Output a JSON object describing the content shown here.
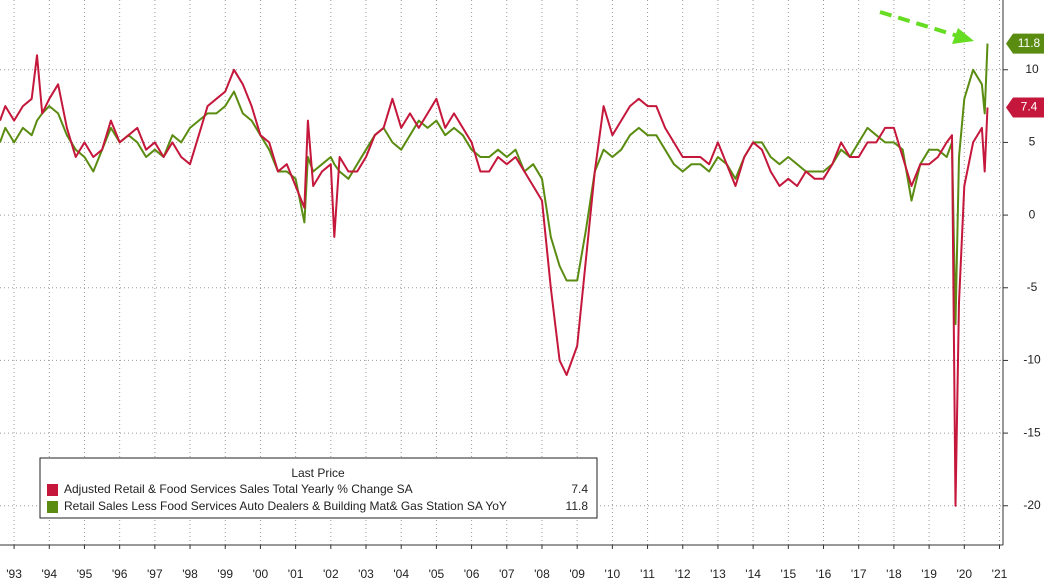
{
  "chart_data": {
    "type": "line",
    "x": [
      1993.1,
      1993.25,
      1993.5,
      1993.75,
      1994,
      1994.15,
      1994.3,
      1994.5,
      1994.75,
      1995,
      1995.25,
      1995.5,
      1995.75,
      1996,
      1996.25,
      1996.5,
      1996.75,
      1997,
      1997.25,
      1997.5,
      1997.75,
      1998,
      1998.25,
      1998.5,
      1998.75,
      1999,
      1999.25,
      1999.5,
      1999.75,
      2000,
      2000.25,
      2000.5,
      2000.75,
      2001,
      2001.25,
      2001.5,
      2001.75,
      2001.85,
      2002,
      2002.25,
      2002.5,
      2002.6,
      2002.75,
      2003,
      2003.25,
      2003.5,
      2003.75,
      2004,
      2004.25,
      2004.5,
      2004.75,
      2005,
      2005.25,
      2005.5,
      2005.75,
      2006,
      2006.25,
      2006.5,
      2006.75,
      2007,
      2007.25,
      2007.5,
      2007.75,
      2008,
      2008.25,
      2008.5,
      2008.75,
      2009,
      2009.2,
      2009.5,
      2009.75,
      2010,
      2010.25,
      2010.5,
      2010.75,
      2011,
      2011.25,
      2011.5,
      2011.75,
      2012,
      2012.25,
      2012.5,
      2012.75,
      2013,
      2013.25,
      2013.5,
      2013.75,
      2014,
      2014.25,
      2014.5,
      2014.75,
      2015,
      2015.25,
      2015.5,
      2015.75,
      2016,
      2016.25,
      2016.5,
      2016.75,
      2017,
      2017.25,
      2017.5,
      2017.75,
      2018,
      2018.25,
      2018.5,
      2018.75,
      2019,
      2019.25,
      2019.5,
      2019.75,
      2020,
      2020.15,
      2020.25,
      2020.35,
      2020.5,
      2020.75,
      2021,
      2021.08,
      2021.16
    ],
    "series": [
      {
        "name": "Adjusted Retail & Food Services Sales Total Yearly % Change SA",
        "color": "#c4173b",
        "values": [
          6.5,
          7.5,
          6.5,
          7.5,
          8,
          11,
          7,
          8,
          9,
          6,
          4,
          5,
          4,
          4.5,
          6.5,
          5,
          5.5,
          6,
          4.5,
          5,
          4,
          5,
          4,
          3.5,
          5.5,
          7.5,
          8,
          8.5,
          10,
          9,
          7.5,
          5.5,
          5,
          3,
          3.5,
          2,
          0.5,
          6.5,
          2,
          3,
          3.5,
          -1.5,
          4,
          3,
          3,
          4,
          5.5,
          6,
          8,
          6,
          7,
          6,
          7,
          8,
          6,
          7,
          6,
          5,
          3,
          3,
          4,
          3.5,
          4,
          3,
          2,
          1,
          -5,
          -10,
          -11,
          -9,
          -3,
          3,
          7.5,
          5.5,
          6.5,
          7.5,
          8,
          7.5,
          7.5,
          6,
          5,
          4,
          4,
          4,
          3.5,
          5,
          3.5,
          2,
          4,
          5,
          4.5,
          3,
          2,
          2.5,
          2,
          3,
          2.5,
          2.5,
          3.5,
          5,
          4,
          4,
          5,
          5,
          6,
          6,
          4,
          2,
          3.5,
          3.5,
          4,
          5,
          5.5,
          -20,
          -6,
          2,
          5,
          6,
          3,
          7.4
        ]
      },
      {
        "name": "Retail Sales Less Food Services Auto Dealers & Building Mat& Gas Station SA YoY",
        "color": "#5b8c12",
        "values": [
          5,
          6,
          5,
          6,
          5.5,
          6.5,
          7,
          7.5,
          7,
          5.5,
          4.5,
          4,
          3,
          4.5,
          6,
          5,
          5.5,
          5,
          4,
          4.5,
          4,
          5.5,
          5,
          6,
          6.5,
          7,
          7,
          7.5,
          8.5,
          7,
          6.5,
          5.5,
          4.5,
          3,
          3,
          2.5,
          -0.5,
          4,
          3,
          3.5,
          4,
          3.5,
          3,
          2.5,
          3.5,
          4.5,
          5.5,
          6,
          5,
          4.5,
          5.5,
          6.5,
          6,
          6.5,
          5.5,
          6,
          5.5,
          4.5,
          4,
          4,
          4.5,
          4,
          4.5,
          3,
          3.5,
          2.5,
          -1.5,
          -3.5,
          -4.5,
          -4.5,
          -1,
          3,
          4.5,
          4,
          4.5,
          5.5,
          6,
          5.5,
          5.5,
          4.5,
          3.5,
          3,
          3.5,
          3.5,
          3,
          4,
          3.5,
          2.5,
          4,
          5,
          5,
          4,
          3.5,
          4,
          3.5,
          3,
          3,
          3,
          3.5,
          4.5,
          4,
          5,
          6,
          5.5,
          5,
          5,
          4.5,
          1,
          3.5,
          4.5,
          4.5,
          4,
          5,
          -7.5,
          4,
          8,
          10,
          9,
          7,
          11.8
        ]
      }
    ],
    "xlim": [
      1993.1,
      2021.6
    ],
    "xticks": [
      {
        "value": 1993.5,
        "label": "'93"
      },
      {
        "value": 1994.5,
        "label": "'94"
      },
      {
        "value": 1995.5,
        "label": "'95"
      },
      {
        "value": 1996.5,
        "label": "'96"
      },
      {
        "value": 1997.5,
        "label": "'97"
      },
      {
        "value": 1998.5,
        "label": "'98"
      },
      {
        "value": 1999.5,
        "label": "'99"
      },
      {
        "value": 2000.5,
        "label": "'00"
      },
      {
        "value": 2001.5,
        "label": "'01"
      },
      {
        "value": 2002.5,
        "label": "'02"
      },
      {
        "value": 2003.5,
        "label": "'03"
      },
      {
        "value": 2004.5,
        "label": "'04"
      },
      {
        "value": 2005.5,
        "label": "'05"
      },
      {
        "value": 2006.5,
        "label": "'06"
      },
      {
        "value": 2007.5,
        "label": "'07"
      },
      {
        "value": 2008.5,
        "label": "'08"
      },
      {
        "value": 2009.5,
        "label": "'09"
      },
      {
        "value": 2010.5,
        "label": "'10"
      },
      {
        "value": 2011.5,
        "label": "'11"
      },
      {
        "value": 2012.5,
        "label": "'12"
      },
      {
        "value": 2013.5,
        "label": "'13"
      },
      {
        "value": 2014.5,
        "label": "'14"
      },
      {
        "value": 2015.5,
        "label": "'15"
      },
      {
        "value": 2016.5,
        "label": "'16"
      },
      {
        "value": 2017.5,
        "label": "'17"
      },
      {
        "value": 2018.5,
        "label": "'18"
      },
      {
        "value": 2019.5,
        "label": "'19"
      },
      {
        "value": 2020.5,
        "label": "'20"
      },
      {
        "value": 2021.5,
        "label": "'21"
      }
    ],
    "ylim": [
      -22.7,
      14.8
    ],
    "yticks": [
      -20,
      -15,
      -10,
      -5,
      0,
      5,
      10
    ],
    "grid": true,
    "legend_title": "Last Price",
    "legend": "bottom-left"
  }
}
